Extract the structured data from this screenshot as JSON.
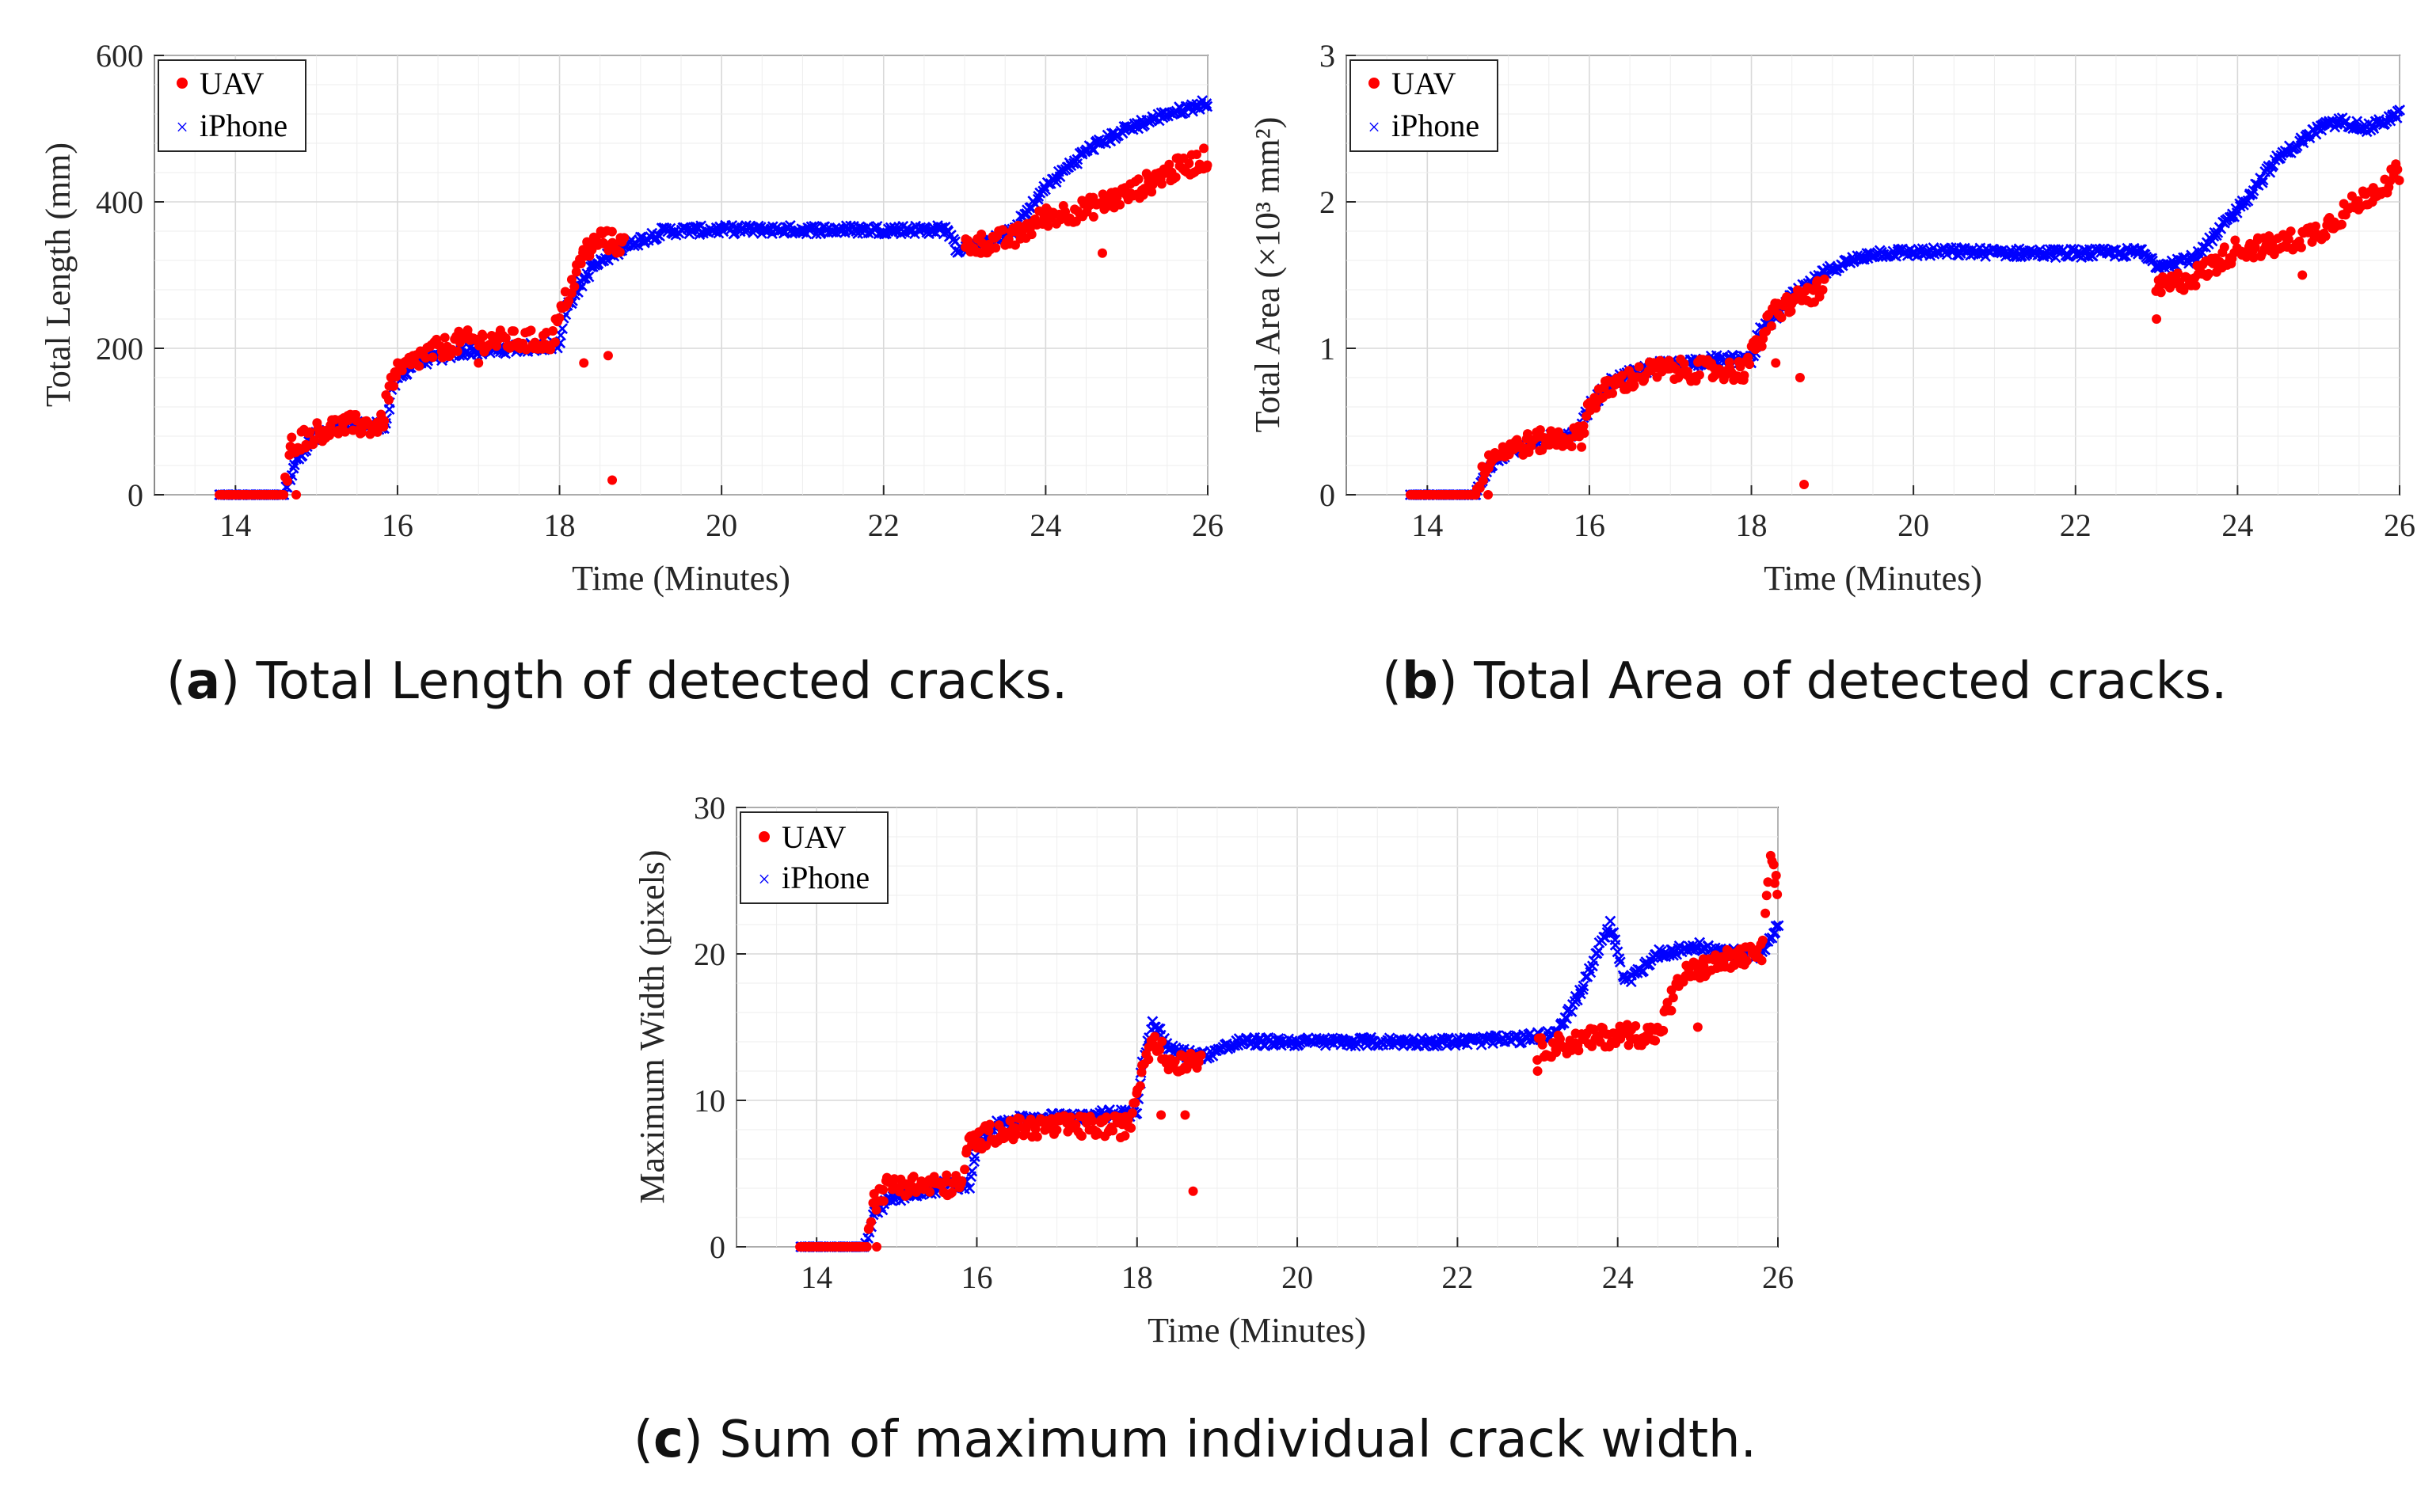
{
  "chart_data": [
    {
      "id": "a",
      "type": "scatter",
      "xlabel": "Time (Minutes)",
      "ylabel": "Total Length (mm)",
      "xlim": [
        13,
        26
      ],
      "ylim": [
        0,
        600
      ],
      "xticks": [
        "14",
        "16",
        "18",
        "20",
        "22",
        "24",
        "26"
      ],
      "yticks": [
        "0",
        "200",
        "400",
        "600"
      ],
      "grid": true,
      "legend": "top-left",
      "caption_letter": "a",
      "caption_text": "Total Length of detected cracks.",
      "series": [
        {
          "name": "UAV",
          "marker": "dot",
          "color": "#ff0000",
          "segments": [
            [
              13.8,
              0
            ],
            [
              14.6,
              0
            ],
            [
              14.7,
              70
            ],
            [
              15.0,
              85
            ],
            [
              15.3,
              95
            ],
            [
              15.8,
              95
            ],
            [
              15.95,
              160
            ],
            [
              16.3,
              190
            ],
            [
              16.8,
              210
            ],
            [
              17.3,
              210
            ],
            [
              17.9,
              210
            ],
            [
              18.1,
              270
            ],
            [
              18.3,
              330
            ],
            [
              18.5,
              350
            ],
            [
              18.8,
              340
            ]
          ],
          "outliers": [
            [
              14.75,
              0
            ],
            [
              18.65,
              20
            ],
            [
              18.6,
              190
            ],
            [
              18.3,
              180
            ],
            [
              17.0,
              180
            ],
            [
              24.7,
              330
            ],
            [
              23.2,
              330
            ]
          ],
          "late": [
            [
              23.0,
              340
            ],
            [
              23.6,
              350
            ],
            [
              24.0,
              380
            ],
            [
              24.5,
              390
            ],
            [
              25.0,
              410
            ],
            [
              25.5,
              440
            ],
            [
              26.0,
              460
            ]
          ]
        },
        {
          "name": "iPhone",
          "marker": "x",
          "color": "#0000ff",
          "segments": [
            [
              13.8,
              0
            ],
            [
              14.6,
              0
            ],
            [
              14.75,
              50
            ],
            [
              15.0,
              80
            ],
            [
              15.4,
              95
            ],
            [
              15.85,
              95
            ],
            [
              15.95,
              150
            ],
            [
              16.2,
              180
            ],
            [
              16.8,
              195
            ],
            [
              17.5,
              200
            ],
            [
              18.0,
              205
            ],
            [
              18.1,
              260
            ],
            [
              18.4,
              310
            ],
            [
              18.8,
              340
            ],
            [
              19.3,
              360
            ],
            [
              20.0,
              362
            ],
            [
              21.0,
              362
            ],
            [
              22.0,
              362
            ],
            [
              22.8,
              362
            ],
            [
              22.9,
              335
            ],
            [
              23.3,
              345
            ],
            [
              23.6,
              360
            ],
            [
              24.0,
              420
            ],
            [
              24.5,
              470
            ],
            [
              25.0,
              500
            ],
            [
              25.5,
              520
            ],
            [
              26.0,
              535
            ]
          ]
        }
      ]
    },
    {
      "id": "b",
      "type": "scatter",
      "xlabel": "Time (Minutes)",
      "ylabel": "Total Area (×10³ mm²)",
      "xlim": [
        13,
        26
      ],
      "ylim": [
        0,
        3
      ],
      "xticks": [
        "14",
        "16",
        "18",
        "20",
        "22",
        "24",
        "26"
      ],
      "yticks": [
        "0",
        "1",
        "2",
        "3"
      ],
      "grid": true,
      "legend": "top-left",
      "caption_letter": "b",
      "caption_text": "Total Area of detected cracks.",
      "series": [
        {
          "name": "UAV",
          "marker": "dot",
          "color": "#ff0000",
          "segments": [
            [
              13.8,
              0
            ],
            [
              14.6,
              0
            ],
            [
              14.75,
              0.25
            ],
            [
              15.0,
              0.32
            ],
            [
              15.5,
              0.38
            ],
            [
              15.9,
              0.4
            ],
            [
              16.0,
              0.62
            ],
            [
              16.3,
              0.75
            ],
            [
              16.8,
              0.85
            ],
            [
              17.3,
              0.85
            ],
            [
              17.9,
              0.85
            ],
            [
              18.1,
              1.05
            ],
            [
              18.3,
              1.25
            ],
            [
              18.6,
              1.35
            ],
            [
              18.9,
              1.4
            ]
          ],
          "outliers": [
            [
              14.75,
              0
            ],
            [
              18.65,
              0.07
            ],
            [
              18.6,
              0.8
            ],
            [
              18.3,
              0.9
            ],
            [
              23.0,
              1.2
            ],
            [
              24.8,
              1.5
            ]
          ],
          "late": [
            [
              23.0,
              1.4
            ],
            [
              23.5,
              1.5
            ],
            [
              24.0,
              1.68
            ],
            [
              24.5,
              1.7
            ],
            [
              25.0,
              1.8
            ],
            [
              25.5,
              2.0
            ],
            [
              26.0,
              2.2
            ]
          ]
        },
        {
          "name": "iPhone",
          "marker": "x",
          "color": "#0000ff",
          "segments": [
            [
              13.8,
              0
            ],
            [
              14.6,
              0
            ],
            [
              14.75,
              0.2
            ],
            [
              15.0,
              0.3
            ],
            [
              15.5,
              0.38
            ],
            [
              15.85,
              0.4
            ],
            [
              16.0,
              0.6
            ],
            [
              16.3,
              0.78
            ],
            [
              16.8,
              0.88
            ],
            [
              17.5,
              0.92
            ],
            [
              18.0,
              0.93
            ],
            [
              18.1,
              1.1
            ],
            [
              18.5,
              1.35
            ],
            [
              19.0,
              1.55
            ],
            [
              19.5,
              1.65
            ],
            [
              20.5,
              1.66
            ],
            [
              21.5,
              1.65
            ],
            [
              22.5,
              1.65
            ],
            [
              22.8,
              1.66
            ],
            [
              23.0,
              1.57
            ],
            [
              23.5,
              1.62
            ],
            [
              24.0,
              1.95
            ],
            [
              24.5,
              2.3
            ],
            [
              25.0,
              2.5
            ],
            [
              25.3,
              2.55
            ],
            [
              25.6,
              2.5
            ],
            [
              26.0,
              2.6
            ]
          ]
        }
      ]
    },
    {
      "id": "c",
      "type": "scatter",
      "xlabel": "Time (Minutes)",
      "ylabel": "Maximum Width (pixels)",
      "xlim": [
        13,
        26
      ],
      "ylim": [
        0,
        30
      ],
      "xticks": [
        "14",
        "16",
        "18",
        "20",
        "22",
        "24",
        "26"
      ],
      "yticks": [
        "0",
        "10",
        "20",
        "30"
      ],
      "grid": true,
      "legend": "top-left",
      "caption_letter": "c",
      "caption_text": "Sum of maximum individual crack width.",
      "series": [
        {
          "name": "UAV",
          "marker": "dot",
          "color": "#ff0000",
          "segments": [
            [
              13.8,
              0
            ],
            [
              14.6,
              0
            ],
            [
              14.7,
              3
            ],
            [
              14.9,
              4.2
            ],
            [
              15.4,
              4.2
            ],
            [
              15.8,
              4.2
            ],
            [
              15.9,
              7
            ],
            [
              16.2,
              7.8
            ],
            [
              16.7,
              8.2
            ],
            [
              17.3,
              8.2
            ],
            [
              17.9,
              8.2
            ],
            [
              18.05,
              12
            ],
            [
              18.2,
              14.5
            ],
            [
              18.4,
              12.5
            ],
            [
              18.8,
              13
            ]
          ],
          "outliers": [
            [
              14.75,
              0
            ],
            [
              18.7,
              3.8
            ],
            [
              18.6,
              9
            ],
            [
              18.3,
              9
            ],
            [
              23.0,
              12
            ],
            [
              25.0,
              15
            ]
          ],
          "late": [
            [
              23.0,
              13.5
            ],
            [
              23.5,
              14
            ],
            [
              24.0,
              14.5
            ],
            [
              24.5,
              14.5
            ],
            [
              24.8,
              18.5
            ],
            [
              25.3,
              19.5
            ],
            [
              25.8,
              20
            ],
            [
              25.9,
              26
            ],
            [
              26.0,
              24.5
            ]
          ]
        },
        {
          "name": "iPhone",
          "marker": "x",
          "color": "#0000ff",
          "segments": [
            [
              13.8,
              0
            ],
            [
              14.6,
              0
            ],
            [
              14.7,
              2
            ],
            [
              14.9,
              3.3
            ],
            [
              15.3,
              3.6
            ],
            [
              15.6,
              4.2
            ],
            [
              15.9,
              4.2
            ],
            [
              16.0,
              7
            ],
            [
              16.3,
              8.5
            ],
            [
              16.8,
              8.8
            ],
            [
              17.5,
              9
            ],
            [
              18.0,
              9.2
            ],
            [
              18.05,
              12
            ],
            [
              18.2,
              15.5
            ],
            [
              18.4,
              13.5
            ],
            [
              18.8,
              13
            ],
            [
              19.3,
              14
            ],
            [
              20.0,
              14
            ],
            [
              21.0,
              14
            ],
            [
              22.0,
              14
            ],
            [
              22.8,
              14.2
            ],
            [
              23.2,
              14.5
            ],
            [
              23.5,
              17
            ],
            [
              23.9,
              22
            ],
            [
              24.1,
              18
            ],
            [
              24.5,
              20
            ],
            [
              25.0,
              20.5
            ],
            [
              25.5,
              20
            ],
            [
              25.8,
              20
            ],
            [
              26.0,
              22
            ]
          ]
        }
      ]
    }
  ]
}
